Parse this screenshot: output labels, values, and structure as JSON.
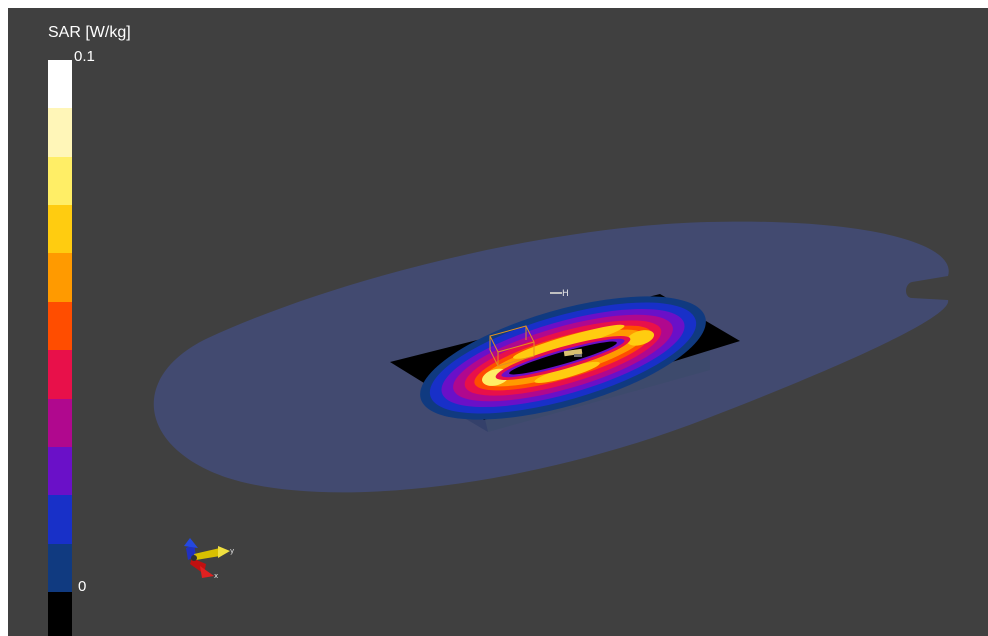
{
  "legend": {
    "title": "SAR [W/kg]",
    "max_label": "0.1",
    "min_label": "0",
    "colors": [
      "#ffffff",
      "#fff6b8",
      "#ffee66",
      "#ffcc10",
      "#ff9a00",
      "#ff4d00",
      "#e8104a",
      "#b0088e",
      "#6a10c8",
      "#1830c8",
      "#103a80",
      "#000000"
    ]
  },
  "scene": {
    "source_label": "H",
    "axis_labels": {
      "y": "y",
      "x": "x"
    },
    "colors": {
      "background": "#404040",
      "phantom_ellipse": "#424a70",
      "surface_grid": "#000000",
      "box_side": "#3d4a6c",
      "probe_box": "#e09020"
    }
  }
}
